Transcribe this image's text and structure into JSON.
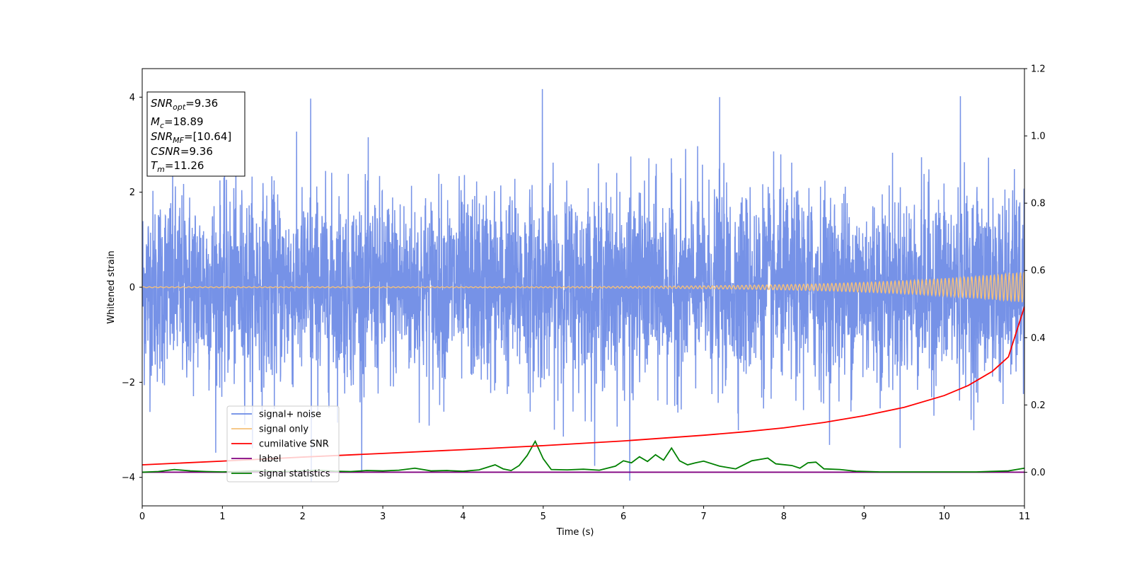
{
  "chart_data": {
    "type": "line",
    "xlabel": "Time (s)",
    "ylabel": "Whitened strain",
    "xlim": [
      0,
      11
    ],
    "ylim_left": [
      -4.6,
      4.6
    ],
    "ylim_right": [
      -0.1,
      1.2
    ],
    "x_ticks": [
      0,
      1,
      2,
      3,
      4,
      5,
      6,
      7,
      8,
      9,
      10,
      11
    ],
    "y_ticks_left": [
      -4,
      -2,
      0,
      2,
      4
    ],
    "y_ticks_left_labels": [
      "−4",
      "−2",
      "0",
      "2",
      "4"
    ],
    "y_ticks_right": [
      0.0,
      0.2,
      0.4,
      0.6,
      0.8,
      1.0,
      1.2
    ],
    "y_ticks_right_labels": [
      "0.0",
      "0.2",
      "0.4",
      "0.6",
      "0.8",
      "1.0",
      "1.2"
    ],
    "grid": false,
    "legend_position": "lower-left",
    "legend": [
      {
        "label": "signal+ noise",
        "color": "#6a89e5"
      },
      {
        "label": "signal only",
        "color": "#f5c07a"
      },
      {
        "label": "cumilative SNR",
        "color": "#ff0000"
      },
      {
        "label": "label",
        "color": "#800080"
      },
      {
        "label": "signal statistics",
        "color": "#008000"
      }
    ],
    "annotation": [
      {
        "base": "SNR",
        "sub": "opt",
        "rest": "=9.36"
      },
      {
        "base": "M",
        "sub": "c",
        "rest": "=18.89"
      },
      {
        "base": "SNR",
        "sub": "MF",
        "rest": "=[10.64]"
      },
      {
        "base": "CSNR",
        "sub": "",
        "rest": "=9.36"
      },
      {
        "base": "T",
        "sub": "m",
        "rest": "=11.26"
      }
    ],
    "series": [
      {
        "name": "signal+ noise",
        "axis": "left",
        "color": "#6a89e5",
        "description_range": [
          -4.1,
          4.2
        ],
        "x": [
          0,
          2.1,
          4.99,
          6.07,
          11
        ],
        "peaks": [
          [
            2.1,
            3.97
          ],
          [
            4.99,
            4.17
          ],
          [
            7.2,
            4.0
          ],
          [
            10.2,
            4.02
          ],
          [
            2.1,
            -4.1
          ],
          [
            6.07,
            -4.07
          ]
        ]
      },
      {
        "name": "signal only",
        "axis": "left",
        "color": "#f5c07a",
        "amplitude_start": 0.01,
        "amplitude_end": 0.32
      },
      {
        "name": "cumilative SNR",
        "axis": "right",
        "color": "#ff0000",
        "x": [
          0,
          1,
          2,
          3,
          4,
          5,
          6,
          7,
          7.5,
          8,
          8.5,
          9,
          9.5,
          10,
          10.3,
          10.6,
          10.8,
          11
        ],
        "y": [
          0.022,
          0.033,
          0.045,
          0.056,
          0.067,
          0.079,
          0.093,
          0.11,
          0.12,
          0.132,
          0.148,
          0.168,
          0.193,
          0.228,
          0.258,
          0.3,
          0.343,
          0.492
        ]
      },
      {
        "name": "label",
        "axis": "right",
        "color": "#800080",
        "x": [
          0,
          11
        ],
        "y": [
          0.0,
          0.0
        ]
      },
      {
        "name": "signal statistics",
        "axis": "right",
        "color": "#008000",
        "x": [
          0,
          0.2,
          0.4,
          0.6,
          0.8,
          1.0,
          1.2,
          1.4,
          1.6,
          1.8,
          2.0,
          2.2,
          2.4,
          2.6,
          2.8,
          3.0,
          3.2,
          3.4,
          3.6,
          3.8,
          4.0,
          4.2,
          4.4,
          4.5,
          4.6,
          4.7,
          4.8,
          4.9,
          5.0,
          5.1,
          5.3,
          5.5,
          5.7,
          5.8,
          5.9,
          6.0,
          6.1,
          6.2,
          6.3,
          6.4,
          6.5,
          6.6,
          6.7,
          6.8,
          6.9,
          7.0,
          7.2,
          7.4,
          7.6,
          7.7,
          7.8,
          7.9,
          8.1,
          8.2,
          8.3,
          8.4,
          8.5,
          8.7,
          8.9,
          9.2,
          9.6,
          10.0,
          10.4,
          10.8,
          11.0
        ],
        "y": [
          0.0,
          0.002,
          0.008,
          0.004,
          0.002,
          0.001,
          0.002,
          0.004,
          0.003,
          0.002,
          0.004,
          0.006,
          0.003,
          0.002,
          0.005,
          0.004,
          0.006,
          0.012,
          0.004,
          0.005,
          0.003,
          0.007,
          0.022,
          0.01,
          0.005,
          0.02,
          0.05,
          0.092,
          0.04,
          0.008,
          0.007,
          0.009,
          0.006,
          0.012,
          0.018,
          0.034,
          0.028,
          0.046,
          0.032,
          0.052,
          0.036,
          0.072,
          0.034,
          0.022,
          0.028,
          0.033,
          0.018,
          0.01,
          0.034,
          0.038,
          0.042,
          0.025,
          0.02,
          0.012,
          0.028,
          0.03,
          0.01,
          0.008,
          0.003,
          0.001,
          0.001,
          0.001,
          0.001,
          0.004,
          0.012
        ]
      }
    ]
  }
}
